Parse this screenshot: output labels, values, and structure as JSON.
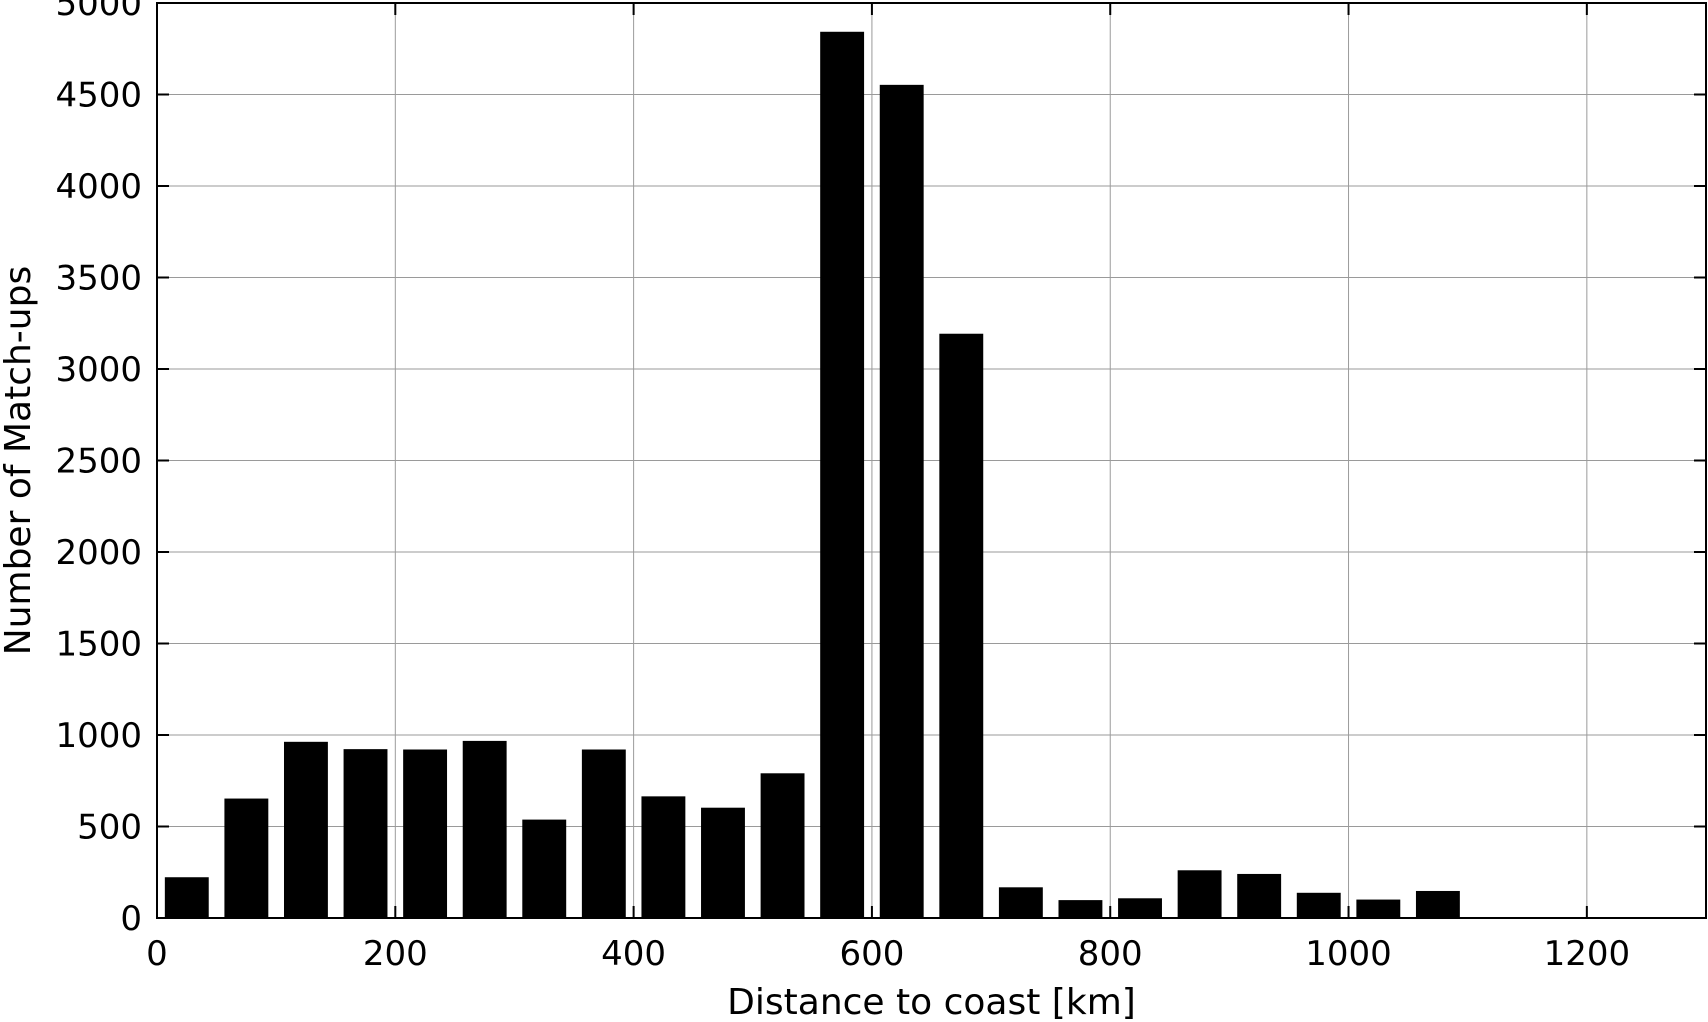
{
  "chart_data": {
    "type": "bar",
    "xlabel": "Distance to coast [km]",
    "ylabel": "Number of Match-ups",
    "xlim": [
      0,
      1300
    ],
    "ylim": [
      0,
      5000
    ],
    "xticks": [
      0,
      200,
      400,
      600,
      800,
      1000,
      1200
    ],
    "yticks": [
      0,
      500,
      1000,
      1500,
      2000,
      2500,
      3000,
      3500,
      4000,
      4500,
      5000
    ],
    "grid": true,
    "bin_width": 50,
    "bar_color": "#000000",
    "bars": [
      {
        "x": 25,
        "value": 220
      },
      {
        "x": 75,
        "value": 650
      },
      {
        "x": 125,
        "value": 960
      },
      {
        "x": 175,
        "value": 920
      },
      {
        "x": 225,
        "value": 918
      },
      {
        "x": 275,
        "value": 965
      },
      {
        "x": 325,
        "value": 535
      },
      {
        "x": 375,
        "value": 918
      },
      {
        "x": 425,
        "value": 662
      },
      {
        "x": 475,
        "value": 600
      },
      {
        "x": 525,
        "value": 788
      },
      {
        "x": 575,
        "value": 4840
      },
      {
        "x": 625,
        "value": 4550
      },
      {
        "x": 675,
        "value": 3190
      },
      {
        "x": 725,
        "value": 165
      },
      {
        "x": 775,
        "value": 95
      },
      {
        "x": 825,
        "value": 105
      },
      {
        "x": 875,
        "value": 258
      },
      {
        "x": 925,
        "value": 238
      },
      {
        "x": 975,
        "value": 135
      },
      {
        "x": 1025,
        "value": 98
      },
      {
        "x": 1075,
        "value": 145
      }
    ]
  }
}
